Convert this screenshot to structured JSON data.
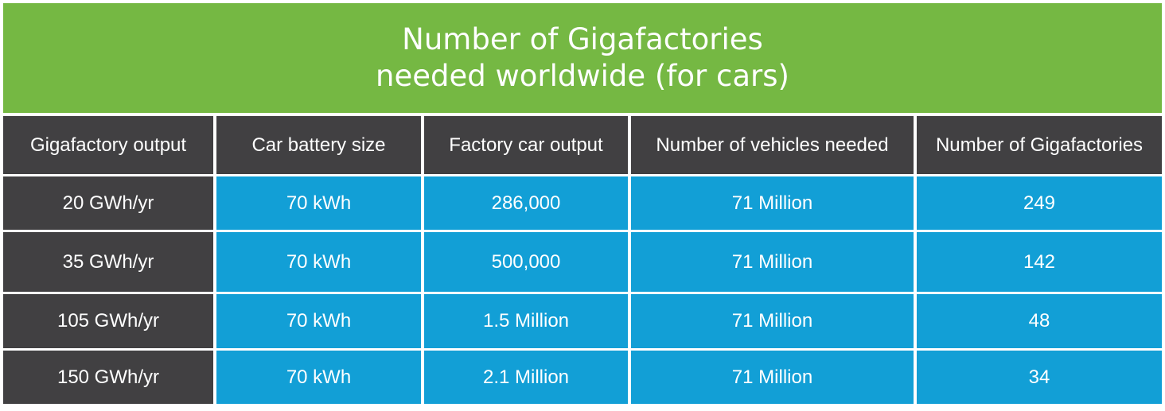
{
  "title": {
    "line1": "Number of Gigafactories",
    "line2": "needed worldwide (for cars)"
  },
  "colors": {
    "title_bg": "#75b843",
    "header_bg": "#414042",
    "cell_bg": "#129fd6",
    "text": "#ffffff"
  },
  "table": {
    "headers": [
      "Gigafactory output",
      "Car battery size",
      "Factory car output",
      "Number of vehicles needed",
      "Number of Gigafactories"
    ],
    "rows": [
      [
        "20 GWh/yr",
        "70 kWh",
        "286,000",
        "71 Million",
        "249"
      ],
      [
        "35 GWh/yr",
        "70 kWh",
        "500,000",
        "71 Million",
        "142"
      ],
      [
        "105 GWh/yr",
        "70 kWh",
        "1.5 Million",
        "71 Million",
        "48"
      ],
      [
        "150 GWh/yr",
        "70 kWh",
        "2.1 Million",
        "71 Million",
        "34"
      ]
    ]
  }
}
